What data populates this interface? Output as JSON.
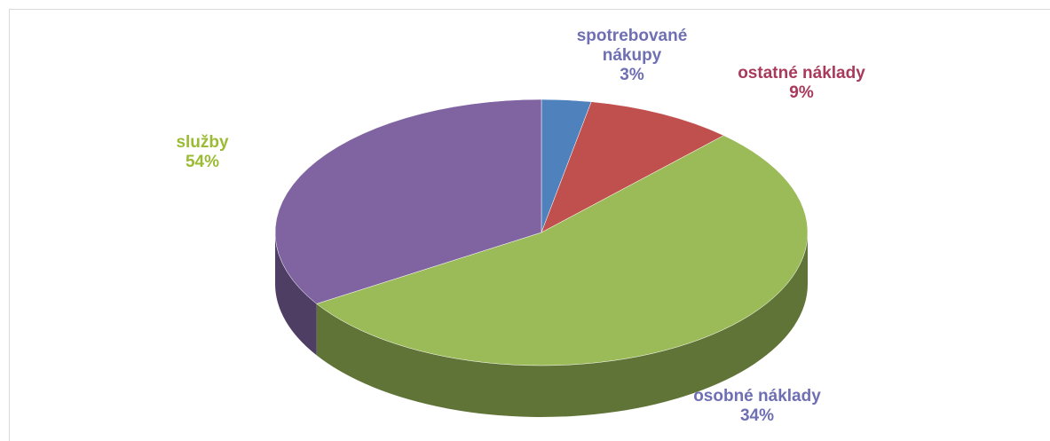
{
  "chart_data": {
    "type": "pie3d",
    "categories": [
      "spotrebované nákupy",
      "ostatné náklady",
      "služby",
      "osobné náklady"
    ],
    "values": [
      3,
      9,
      54,
      34
    ],
    "value_labels": [
      "3%",
      "9%",
      "54%",
      "34%"
    ],
    "colors": [
      "#4f81bd",
      "#c0504d",
      "#9bbb59",
      "#8064a2"
    ],
    "label_colors": [
      "#6f6fb3",
      "#a83a5c",
      "#9bbb34",
      "#6f6fb3"
    ]
  }
}
